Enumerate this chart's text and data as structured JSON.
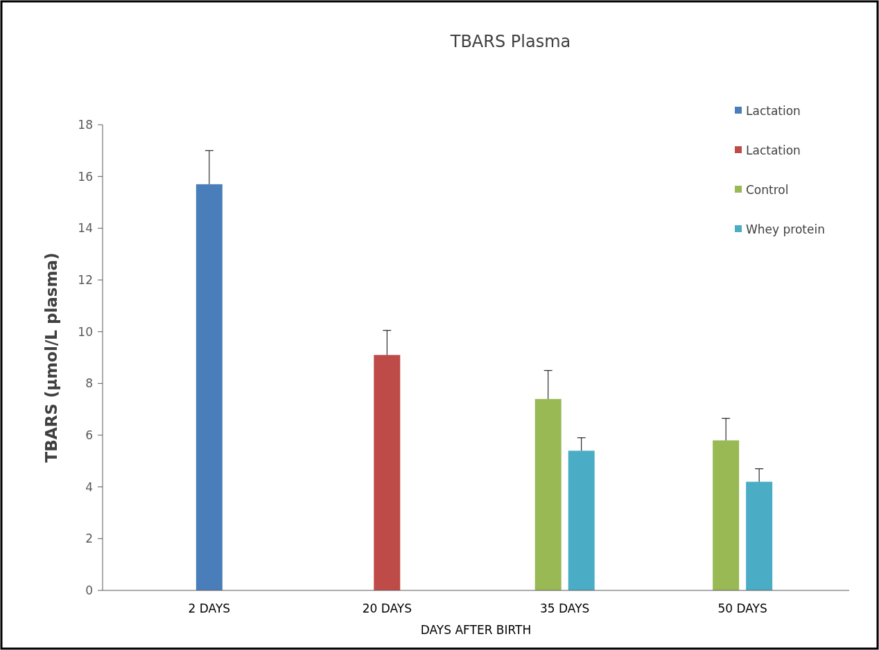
{
  "chart_data": {
    "type": "bar",
    "title": "TBARS Plasma",
    "xlabel": "DAYS AFTER BIRTH",
    "ylabel": "TBARS (µmol/L plasma)",
    "categories": [
      "2 DAYS",
      "20 DAYS",
      "35 DAYS",
      "50 DAYS"
    ],
    "series": [
      {
        "name": "Lactation",
        "color": "#4a7ebb",
        "values": [
          15.7,
          null,
          null,
          null
        ],
        "errors": [
          1.3,
          null,
          null,
          null
        ]
      },
      {
        "name": "Lactation",
        "color": "#be4b48",
        "values": [
          null,
          9.1,
          null,
          null
        ],
        "errors": [
          null,
          0.95,
          null,
          null
        ]
      },
      {
        "name": "Control",
        "color": "#98b954",
        "values": [
          null,
          null,
          7.4,
          5.8
        ],
        "errors": [
          null,
          null,
          1.1,
          0.85
        ]
      },
      {
        "name": "Whey protein",
        "color": "#4bacc6",
        "values": [
          null,
          null,
          5.4,
          4.2
        ],
        "errors": [
          null,
          null,
          0.5,
          0.5
        ]
      }
    ],
    "ylim": [
      0,
      18
    ],
    "yticks": [
      0,
      2,
      4,
      6,
      8,
      10,
      12,
      14,
      16,
      18
    ],
    "grid": false,
    "legend": "top right"
  }
}
